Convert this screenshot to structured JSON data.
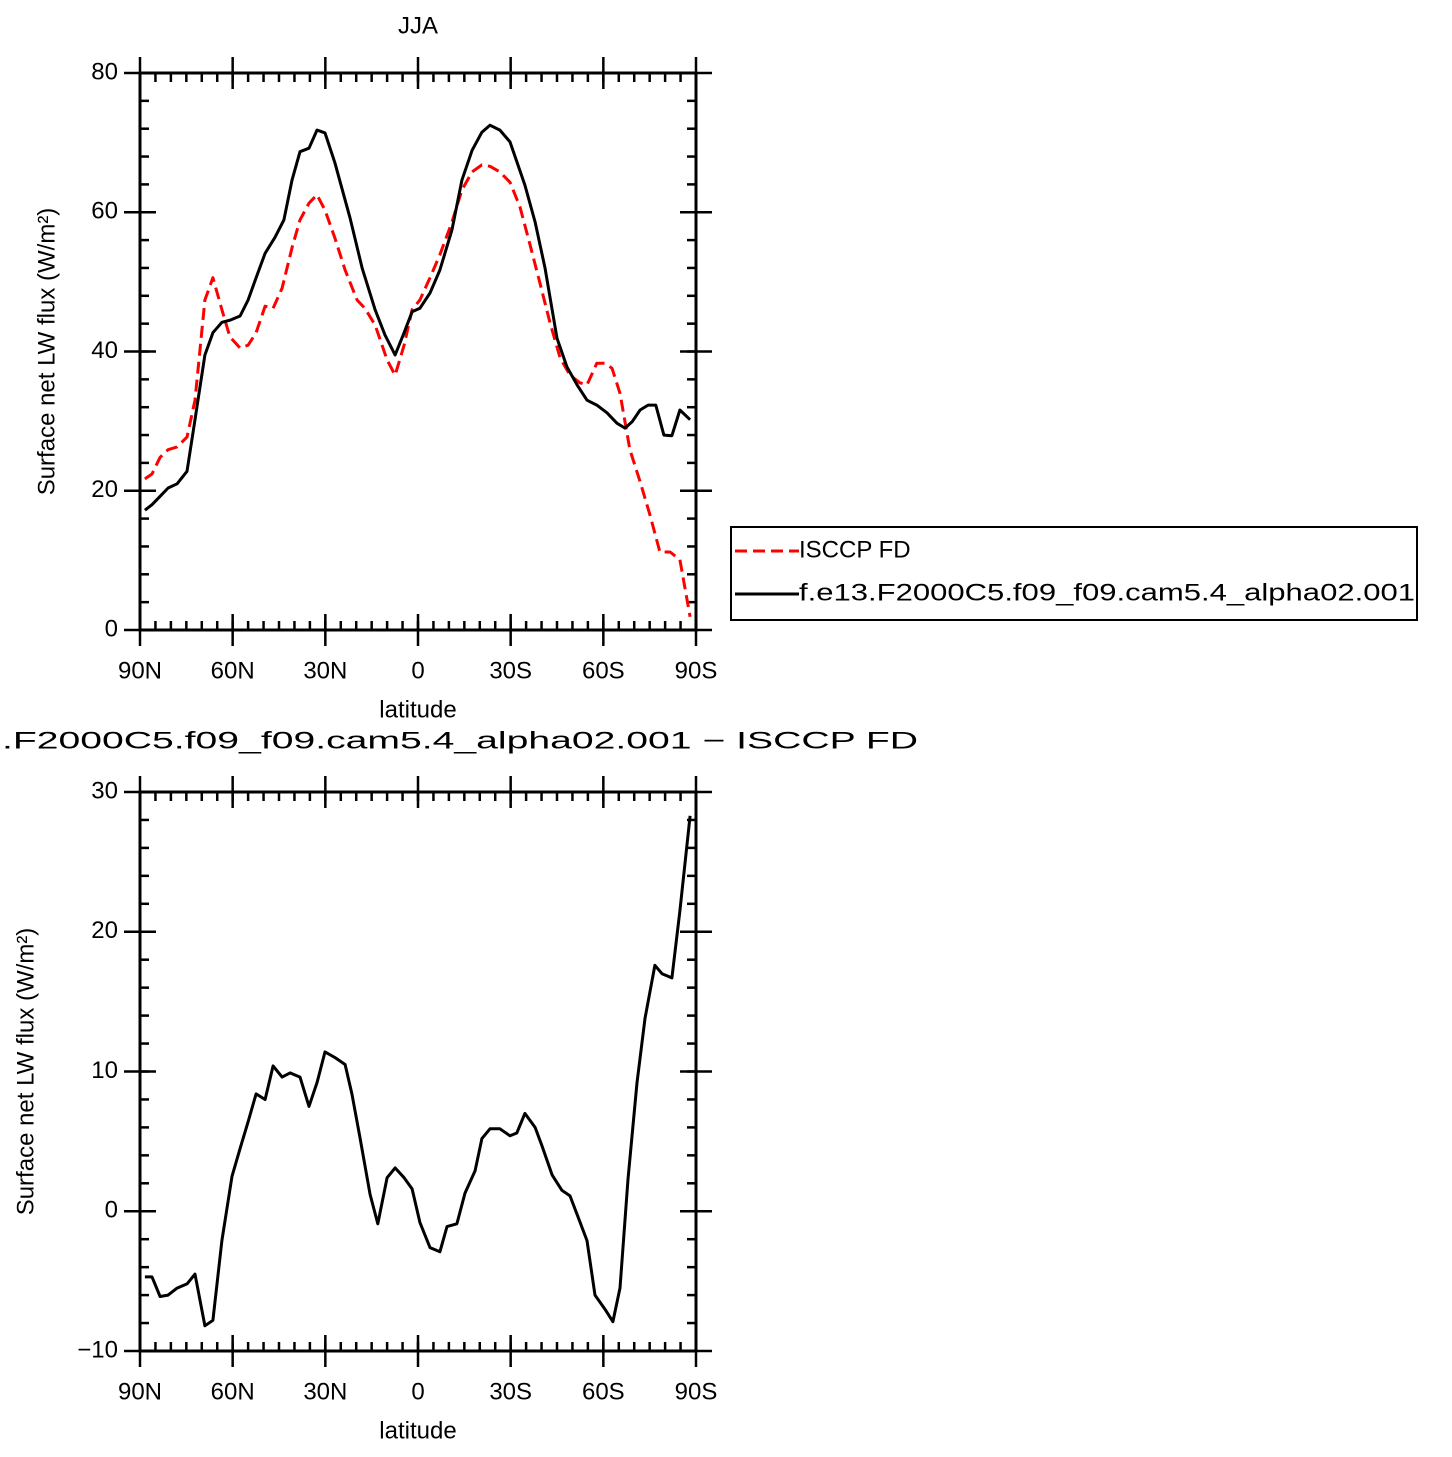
{
  "chart_data": [
    {
      "type": "line",
      "title": "JJA",
      "xlabel": "latitude",
      "ylabel": "Surface net LW flux (W/m²)",
      "xlim": [
        90,
        -90
      ],
      "xticks": [
        {
          "value": 90,
          "label": "90N"
        },
        {
          "value": 60,
          "label": "60N"
        },
        {
          "value": 30,
          "label": "30N"
        },
        0,
        {
          "value": -30,
          "label": "30S"
        },
        {
          "value": -60,
          "label": "60S"
        },
        {
          "value": -90,
          "label": "90S"
        }
      ],
      "ylim": [
        0,
        80
      ],
      "yticks": [
        0,
        20,
        40,
        60,
        80
      ],
      "xminor_step": 5,
      "yminor_step": 4,
      "legend": "right",
      "series": [
        {
          "name": "ISCCP FD",
          "color": "#ff0000",
          "dash": "dashed",
          "x": [
            88.4,
            86.1,
            83.5,
            80.9,
            78.0,
            74.8,
            72.2,
            69.0,
            66.4,
            63.5,
            60.9,
            57.6,
            55.0,
            52.4,
            49.5,
            46.9,
            44.0,
            40.8,
            38.2,
            35.3,
            32.7,
            30.1,
            26.9,
            23.6,
            19.7,
            17.2,
            13.9,
            10.0,
            7.4,
            4.5,
            1.9,
            -0.6,
            -3.9,
            -7.1,
            -11.0,
            -14.2,
            -17.5,
            -20.7,
            -23.3,
            -26.5,
            -29.8,
            -33.0,
            -36.3,
            -39.5,
            -42.7,
            -46.0,
            -49.2,
            -52.4,
            -54.7,
            -57.9,
            -60.5,
            -62.8,
            -65.4,
            -68.6,
            -71.9,
            -75.1,
            -78.3,
            -81.6,
            -84.8,
            -88.1
          ],
          "values": [
            21.7,
            22.4,
            24.8,
            25.9,
            26.3,
            27.7,
            33.0,
            47.4,
            50.6,
            46.0,
            42.1,
            40.5,
            40.9,
            42.7,
            46.5,
            46.2,
            49.1,
            54.9,
            58.9,
            61.3,
            62.5,
            60.3,
            56.3,
            51.7,
            47.4,
            46.2,
            43.8,
            38.8,
            36.6,
            40.9,
            46.0,
            47.4,
            50.6,
            53.9,
            58.6,
            63.2,
            65.8,
            66.8,
            66.6,
            65.8,
            64.3,
            60.8,
            55.3,
            49.8,
            44.2,
            39.1,
            36.6,
            35.5,
            35.2,
            38.3,
            38.3,
            37.6,
            34.0,
            25.9,
            21.3,
            16.5,
            11.2,
            11.2,
            10.1,
            1.9
          ]
        },
        {
          "name": "f.e13.F2000C5.f09_f09.cam5.4_alpha02.001",
          "color": "#000000",
          "dash": "solid",
          "x": [
            88.4,
            86.1,
            83.5,
            80.9,
            78.0,
            74.8,
            72.2,
            69.0,
            66.4,
            63.5,
            60.9,
            57.6,
            55.0,
            52.4,
            49.5,
            46.3,
            43.4,
            40.8,
            38.2,
            35.3,
            32.7,
            30.1,
            26.9,
            22.0,
            18.1,
            13.9,
            10.7,
            7.4,
            4.5,
            1.9,
            -0.6,
            -3.9,
            -7.1,
            -11.0,
            -14.2,
            -17.5,
            -20.7,
            -23.3,
            -26.5,
            -29.8,
            -34.6,
            -37.9,
            -41.1,
            -45.0,
            -48.2,
            -51.5,
            -54.7,
            -57.9,
            -61.2,
            -64.4,
            -67.0,
            -69.3,
            -71.9,
            -74.5,
            -77.0,
            -79.6,
            -82.2,
            -84.8,
            -88.1
          ],
          "values": [
            17.2,
            18.0,
            19.2,
            20.4,
            21.0,
            22.8,
            30.2,
            39.5,
            42.7,
            44.2,
            44.5,
            45.1,
            47.4,
            50.6,
            54.1,
            56.4,
            58.9,
            64.6,
            68.7,
            69.2,
            71.8,
            71.4,
            67.1,
            59.2,
            52.0,
            46.0,
            42.4,
            39.5,
            42.7,
            45.7,
            46.2,
            48.4,
            51.7,
            57.5,
            64.6,
            68.9,
            71.5,
            72.5,
            71.8,
            70.1,
            63.9,
            58.6,
            52.0,
            41.9,
            37.8,
            35.2,
            33.0,
            32.3,
            31.2,
            29.7,
            29.0,
            29.9,
            31.6,
            32.3,
            32.3,
            28.0,
            27.9,
            31.6,
            30.2
          ]
        }
      ]
    },
    {
      "type": "line",
      "title": ".F2000C5.f09_f09.cam5.4_alpha02.001 − ISCCP FD",
      "xlabel": "latitude",
      "ylabel": "Surface net LW flux (W/m²)",
      "xlim": [
        90,
        -90
      ],
      "xticks": [
        {
          "value": 90,
          "label": "90N"
        },
        {
          "value": 60,
          "label": "60N"
        },
        {
          "value": 30,
          "label": "30N"
        },
        0,
        {
          "value": -30,
          "label": "30S"
        },
        {
          "value": -60,
          "label": "60S"
        },
        {
          "value": -90,
          "label": "90S"
        }
      ],
      "ylim": [
        -10,
        30
      ],
      "yticks": [
        {
          "value": -10,
          "label": "−10"
        },
        0,
        10,
        20,
        30
      ],
      "xminor_step": 5,
      "yminor_step": 2,
      "series": [
        {
          "color": "#000000",
          "dash": "solid",
          "x": [
            88.4,
            86.1,
            83.5,
            80.9,
            78.0,
            74.8,
            72.2,
            69.0,
            66.4,
            63.5,
            60.2,
            57.6,
            55.0,
            52.4,
            49.5,
            46.9,
            44.0,
            41.4,
            38.2,
            35.3,
            32.7,
            30.1,
            26.9,
            23.6,
            21.4,
            18.8,
            15.5,
            13.0,
            10.0,
            7.4,
            4.5,
            1.9,
            -0.6,
            -3.9,
            -7.1,
            -9.4,
            -12.6,
            -15.2,
            -18.5,
            -20.7,
            -23.3,
            -26.5,
            -29.8,
            -32.0,
            -34.6,
            -37.9,
            -40.1,
            -43.4,
            -46.6,
            -49.2,
            -51.8,
            -54.7,
            -57.3,
            -60.5,
            -63.1,
            -65.4,
            -68.0,
            -70.9,
            -73.5,
            -76.7,
            -79.0,
            -82.2,
            -84.8,
            -88.1
          ],
          "values": [
            -4.7,
            -4.7,
            -6.1,
            -6.0,
            -5.5,
            -5.2,
            -4.5,
            -8.2,
            -7.8,
            -2.1,
            2.5,
            4.5,
            6.4,
            8.4,
            8.0,
            10.4,
            9.6,
            9.9,
            9.6,
            7.5,
            9.2,
            11.4,
            11.0,
            10.5,
            8.4,
            5.3,
            1.2,
            -0.9,
            2.4,
            3.1,
            2.4,
            1.6,
            -0.8,
            -2.6,
            -2.9,
            -1.1,
            -0.9,
            1.3,
            2.9,
            5.2,
            5.9,
            5.9,
            5.4,
            5.6,
            7.0,
            6.0,
            4.7,
            2.6,
            1.5,
            1.1,
            -0.4,
            -2.1,
            -6.0,
            -7.0,
            -7.9,
            -5.5,
            2.3,
            9.2,
            13.8,
            17.6,
            17.0,
            16.7,
            21.5,
            28.3
          ]
        }
      ]
    }
  ]
}
